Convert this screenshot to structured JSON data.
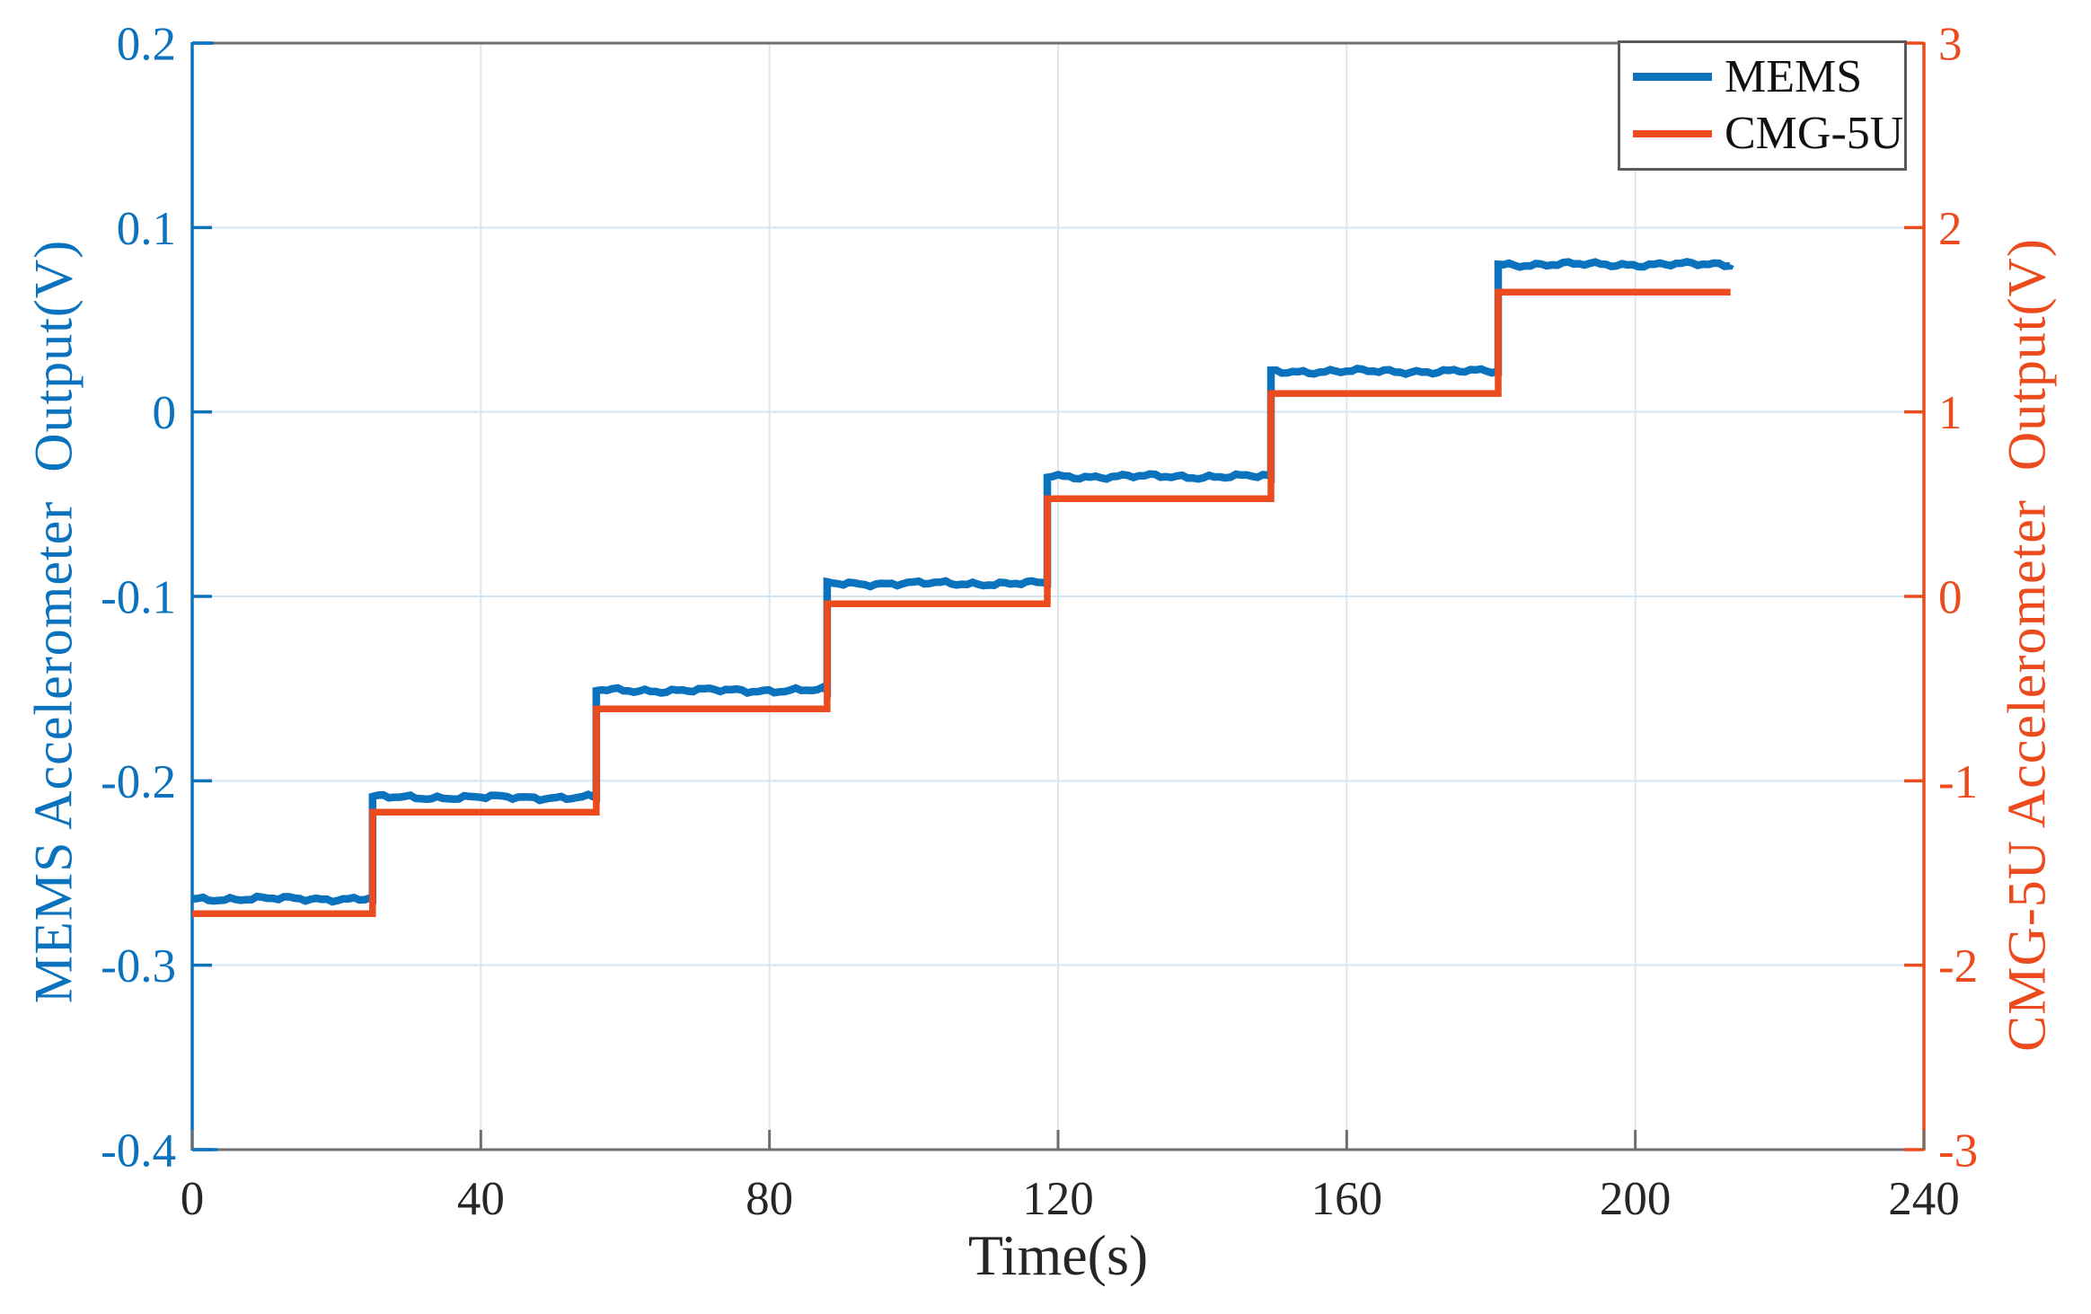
{
  "chart_data": {
    "type": "line",
    "subtype": "dual-axis-step",
    "title": "",
    "xlabel": "Time(s)",
    "x_unit": "s",
    "x_range": [
      0,
      240
    ],
    "x_ticks": [
      0,
      40,
      80,
      120,
      160,
      200,
      240
    ],
    "grid": true,
    "legend_position": "top-right",
    "left_axis": {
      "label": "MEMS Accelerometer  Output(V)",
      "color": "#0b72bd",
      "ylim": [
        -0.4,
        0.2
      ],
      "ticks": [
        0.2,
        0.1,
        0,
        -0.1,
        -0.2,
        -0.3,
        -0.4
      ]
    },
    "right_axis": {
      "label": "CMG-5U Accelerometer  Output(V)",
      "color": "#ec4c1d",
      "ylim": [
        -3,
        3
      ],
      "ticks": [
        3,
        2,
        1,
        0,
        -1,
        -2,
        -3
      ]
    },
    "series": [
      {
        "name": "MEMS",
        "axis": "left",
        "color": "#0b72bd",
        "style": "step-noisy",
        "t_breaks": [
          0,
          25,
          56,
          88,
          118.5,
          149.5,
          181,
          213.2
        ],
        "levels_V": [
          -0.264,
          -0.209,
          -0.151,
          -0.093,
          -0.035,
          0.022,
          0.08
        ]
      },
      {
        "name": "CMG-5U",
        "axis": "right",
        "color": "#ec4c1d",
        "style": "step",
        "t_breaks": [
          0,
          25,
          56,
          88,
          118.5,
          149.5,
          181,
          213.2
        ],
        "levels_V": [
          -1.72,
          -1.17,
          -0.61,
          -0.04,
          0.53,
          1.1,
          1.65
        ]
      }
    ],
    "colors": {
      "grid_horizontal": "#d4e5f3",
      "grid_vertical": "#e1e6ea",
      "frame_gray": "#6e6e6e",
      "x_tick_text": "#262626"
    }
  }
}
